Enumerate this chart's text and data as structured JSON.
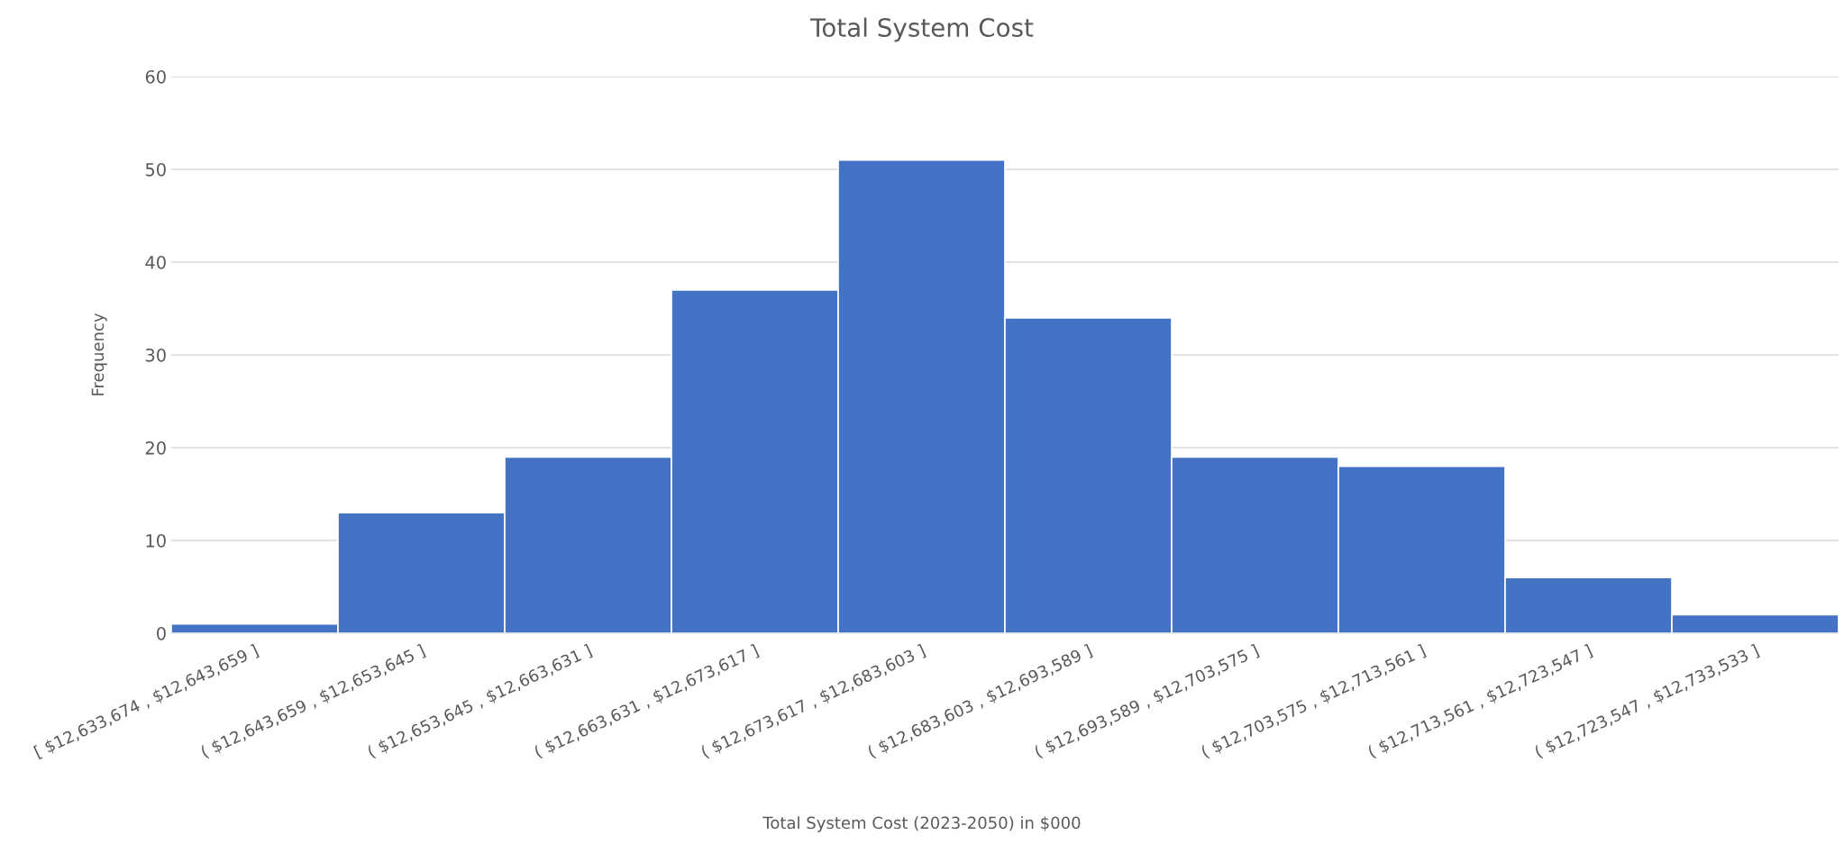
{
  "chart_data": {
    "type": "bar",
    "title": "Total System Cost",
    "xlabel": "Total System Cost (2023-2050) in $000",
    "ylabel": "Frequency",
    "categories": [
      "[ $12,633,674 , $12,643,659 ]",
      "( $12,643,659 , $12,653,645 ]",
      "( $12,653,645 , $12,663,631 ]",
      "( $12,663,631 , $12,673,617 ]",
      "( $12,673,617 , $12,683,603 ]",
      "( $12,683,603 , $12,693,589 ]",
      "( $12,693,589 , $12,703,575 ]",
      "( $12,703,575 , $12,713,561 ]",
      "( $12,713,561 , $12,723,547 ]",
      "( $12,723,547 , $12,733,533 ]"
    ],
    "values": [
      1,
      13,
      19,
      37,
      51,
      34,
      19,
      18,
      6,
      2
    ],
    "color": "#4472c4",
    "ylim": [
      0,
      60
    ],
    "yticks": [
      0,
      10,
      20,
      30,
      40,
      50,
      60
    ],
    "grid": "y",
    "legend": false
  }
}
